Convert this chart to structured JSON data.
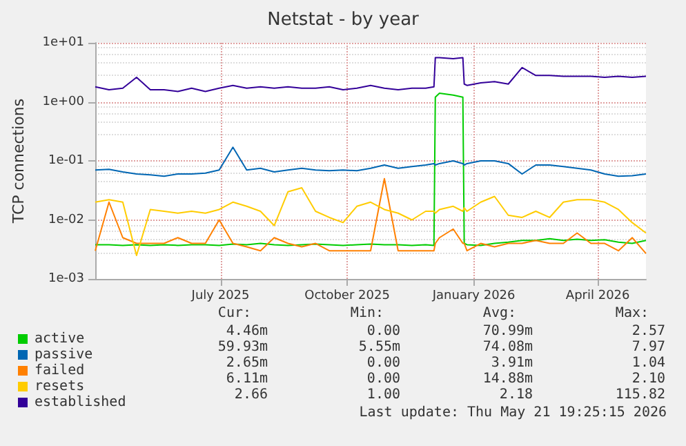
{
  "chart_data": {
    "type": "line",
    "title": "Netstat - by year",
    "ylabel": "TCP connections",
    "log": "y",
    "grid": true,
    "legend": "bottom left",
    "marker": "none",
    "x": [
      "2025-04-16",
      "2025-04-26",
      "2025-05-06",
      "2025-05-16",
      "2025-05-26",
      "2025-06-05",
      "2025-06-15",
      "2025-06-25",
      "2025-07-05",
      "2025-07-15",
      "2025-07-25",
      "2025-08-04",
      "2025-08-14",
      "2025-08-24",
      "2025-09-03",
      "2025-09-13",
      "2025-09-23",
      "2025-10-03",
      "2025-10-13",
      "2025-10-23",
      "2025-11-02",
      "2025-11-12",
      "2025-11-22",
      "2025-12-02",
      "2025-12-12",
      "2025-12-18",
      "2025-12-19",
      "2025-12-22",
      "2026-01-01",
      "2026-01-08",
      "2026-01-09",
      "2026-01-11",
      "2026-01-21",
      "2026-01-31",
      "2026-02-10",
      "2026-02-20",
      "2026-03-02",
      "2026-03-12",
      "2026-03-22",
      "2026-04-01",
      "2026-04-11",
      "2026-04-21",
      "2026-05-01",
      "2026-05-11",
      "2026-05-21"
    ],
    "xlim": [
      "2025-04-16",
      "2026-05-21"
    ],
    "xticks": [
      {
        "value": "2025-07-16",
        "label": "July 2025"
      },
      {
        "value": "2025-10-16",
        "label": "October 2025"
      },
      {
        "value": "2026-01-16",
        "label": "January 2026"
      },
      {
        "value": "2026-04-16",
        "label": "April 2026"
      }
    ],
    "ylim": [
      0.001,
      10
    ],
    "yticks": [
      {
        "value": 0.001,
        "label": "1e-03"
      },
      {
        "value": 0.01,
        "label": "1e-02"
      },
      {
        "value": 0.1,
        "label": "1e-01"
      },
      {
        "value": 1,
        "label": "1e+00"
      },
      {
        "value": 10,
        "label": "1e+01"
      }
    ],
    "series": [
      {
        "name": "active",
        "color": "#00cc00",
        "values": [
          0.0038,
          0.0038,
          0.0037,
          0.0038,
          0.0037,
          0.0038,
          0.0037,
          0.0038,
          0.0038,
          0.0037,
          0.0039,
          0.0038,
          0.004,
          0.0038,
          0.0037,
          0.0038,
          0.0039,
          0.0038,
          0.0037,
          0.0038,
          0.0039,
          0.0038,
          0.0038,
          0.0037,
          0.0038,
          0.0037,
          1.2,
          1.4,
          1.3,
          1.2,
          0.004,
          0.0038,
          0.0037,
          0.004,
          0.0042,
          0.0045,
          0.0045,
          0.0048,
          0.0045,
          0.0047,
          0.0045,
          0.0046,
          0.0042,
          0.004,
          0.0045
        ]
      },
      {
        "name": "passive",
        "color": "#0066b3",
        "values": [
          0.07,
          0.072,
          0.065,
          0.06,
          0.058,
          0.055,
          0.06,
          0.06,
          0.062,
          0.07,
          0.17,
          0.07,
          0.075,
          0.065,
          0.07,
          0.075,
          0.07,
          0.068,
          0.07,
          0.068,
          0.075,
          0.085,
          0.075,
          0.08,
          0.085,
          0.09,
          0.085,
          0.09,
          0.1,
          0.09,
          0.085,
          0.09,
          0.1,
          0.1,
          0.09,
          0.06,
          0.085,
          0.085,
          0.08,
          0.075,
          0.07,
          0.06,
          0.055,
          0.056,
          0.06
        ]
      },
      {
        "name": "failed",
        "color": "#ff8000",
        "values": [
          0.003,
          0.02,
          0.005,
          0.004,
          0.004,
          0.004,
          0.005,
          0.004,
          0.004,
          0.01,
          0.004,
          0.0035,
          0.003,
          0.005,
          0.004,
          0.0035,
          0.004,
          0.003,
          0.003,
          0.003,
          0.003,
          0.05,
          0.003,
          0.003,
          0.003,
          0.003,
          0.004,
          0.005,
          0.007,
          0.004,
          0.004,
          0.003,
          0.004,
          0.0035,
          0.004,
          0.004,
          0.0045,
          0.004,
          0.004,
          0.006,
          0.004,
          0.004,
          0.003,
          0.005,
          0.0027
        ]
      },
      {
        "name": "resets",
        "color": "#ffcc00",
        "values": [
          0.02,
          0.022,
          0.02,
          0.0025,
          0.015,
          0.014,
          0.013,
          0.014,
          0.013,
          0.015,
          0.02,
          0.017,
          0.014,
          0.008,
          0.03,
          0.035,
          0.014,
          0.011,
          0.009,
          0.017,
          0.02,
          0.015,
          0.013,
          0.01,
          0.014,
          0.014,
          0.013,
          0.015,
          0.017,
          0.014,
          0.016,
          0.014,
          0.02,
          0.025,
          0.012,
          0.011,
          0.014,
          0.011,
          0.02,
          0.022,
          0.022,
          0.02,
          0.015,
          0.009,
          0.006
        ]
      },
      {
        "name": "established",
        "color": "#330099",
        "values": [
          1.8,
          1.6,
          1.7,
          2.6,
          1.6,
          1.6,
          1.5,
          1.7,
          1.5,
          1.7,
          1.9,
          1.7,
          1.8,
          1.7,
          1.8,
          1.7,
          1.7,
          1.8,
          1.6,
          1.7,
          1.9,
          1.7,
          1.6,
          1.7,
          1.7,
          1.8,
          5.6,
          5.6,
          5.4,
          5.6,
          2.0,
          1.9,
          2.1,
          2.2,
          2.0,
          3.8,
          2.8,
          2.8,
          2.7,
          2.7,
          2.7,
          2.6,
          2.7,
          2.6,
          2.7
        ]
      }
    ],
    "annotations": [
      "Cur:",
      "Min:",
      "Avg:",
      "Max:",
      "4.46m",
      "0.00",
      "70.99m",
      "2.57",
      "59.93m",
      "5.55m",
      "74.08m",
      "7.97",
      "2.65m",
      "0.00",
      "3.91m",
      "1.04",
      "6.11m",
      "0.00",
      "14.88m",
      "2.10",
      "2.66",
      "1.00",
      "2.18",
      "115.82",
      "Last update: Thu May 21 19:25:15 2026"
    ]
  }
}
